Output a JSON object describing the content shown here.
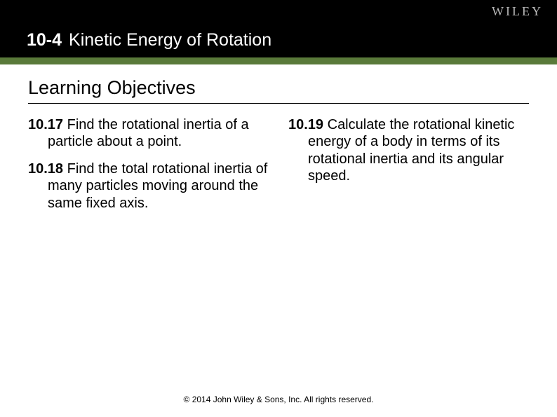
{
  "brand": {
    "logo_text": "WILEY"
  },
  "header": {
    "section_number": "10-4",
    "section_title": "Kinetic Energy of Rotation"
  },
  "accent_color": "#5a7a3a",
  "learning_objectives_heading": "Learning Objectives",
  "columns": {
    "left": [
      {
        "num": "10.17",
        "text": " Find the rotational inertia of a particle about a point."
      },
      {
        "num": "10.18",
        "text": " Find the total rotational inertia of many particles moving around the same fixed axis."
      }
    ],
    "right": [
      {
        "num": "10.19",
        "text": " Calculate the rotational kinetic energy of a body in terms of its rotational inertia and its angular speed."
      }
    ]
  },
  "footer": "© 2014 John Wiley & Sons, Inc. All rights reserved."
}
